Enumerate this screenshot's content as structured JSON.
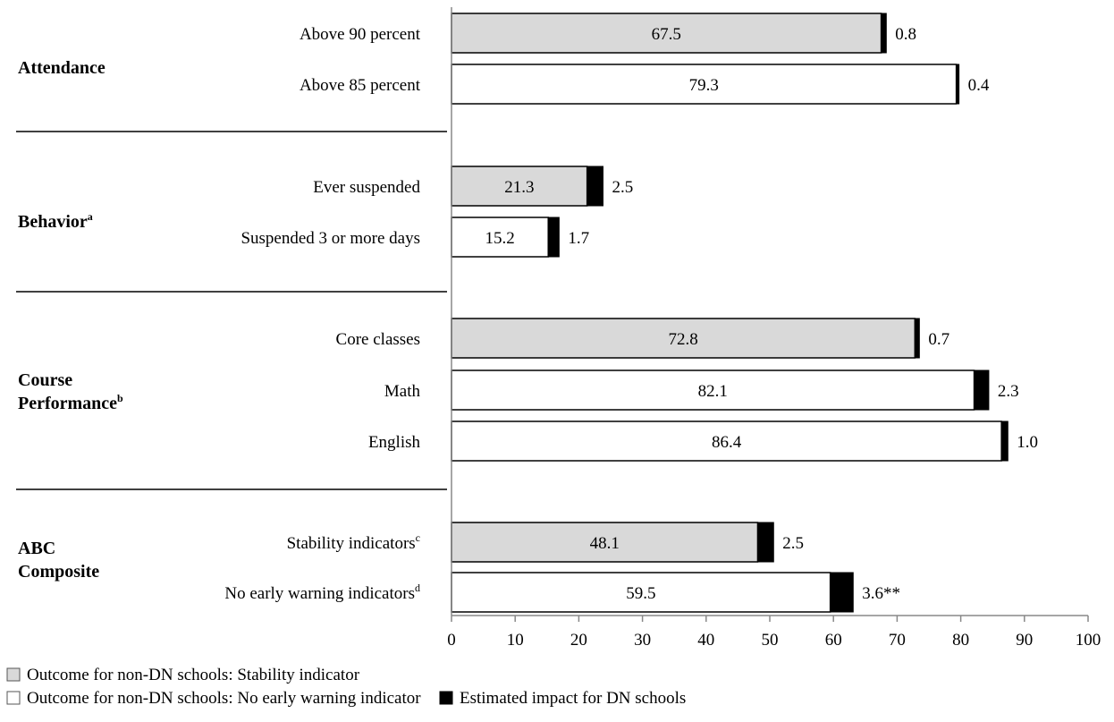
{
  "chart_data": {
    "type": "bar",
    "orientation": "horizontal",
    "stacked": true,
    "xlim": [
      0,
      100
    ],
    "xticks": [
      0,
      10,
      20,
      30,
      40,
      50,
      60,
      70,
      80,
      90,
      100
    ],
    "groups": [
      {
        "label": "Attendance",
        "sup": "",
        "items": [
          0,
          1
        ]
      },
      {
        "label": "Behavior",
        "sup": "a",
        "items": [
          2,
          3
        ]
      },
      {
        "label": "Course Performance",
        "sup": "b",
        "items": [
          4,
          5,
          6
        ]
      },
      {
        "label": "ABC Composite",
        "sup": "",
        "items": [
          7,
          8
        ]
      }
    ],
    "categories": [
      {
        "label": "Above 90 percent",
        "sup": "",
        "style": "stability",
        "base": 67.5,
        "impact": 0.8,
        "impact_label": "0.8"
      },
      {
        "label": "Above 85 percent",
        "sup": "",
        "style": "noewi",
        "base": 79.3,
        "impact": 0.4,
        "impact_label": "0.4"
      },
      {
        "label": "Ever suspended",
        "sup": "",
        "style": "stability",
        "base": 21.3,
        "impact": 2.5,
        "impact_label": "2.5"
      },
      {
        "label": "Suspended 3 or more days",
        "sup": "",
        "style": "noewi",
        "base": 15.2,
        "impact": 1.7,
        "impact_label": "1.7"
      },
      {
        "label": "Core classes",
        "sup": "",
        "style": "stability",
        "base": 72.8,
        "impact": 0.7,
        "impact_label": "0.7"
      },
      {
        "label": "Math",
        "sup": "",
        "style": "noewi",
        "base": 82.1,
        "impact": 2.3,
        "impact_label": "2.3"
      },
      {
        "label": "English",
        "sup": "",
        "style": "noewi",
        "base": 86.4,
        "impact": 1.0,
        "impact_label": "1.0"
      },
      {
        "label": "Stability indicators",
        "sup": "c",
        "style": "stability",
        "base": 48.1,
        "impact": 2.5,
        "impact_label": "2.5"
      },
      {
        "label": "No early warning indicators",
        "sup": "d",
        "style": "noewi",
        "base": 59.5,
        "impact": 3.6,
        "impact_label": "3.6**"
      }
    ],
    "legend": [
      {
        "key": "stability",
        "label": "Outcome for non-DN schools: Stability indicator",
        "color": "#d9d9d9"
      },
      {
        "key": "noewi",
        "label": "Outcome for non-DN schools: No early warning indicator",
        "color": "#ffffff"
      },
      {
        "key": "impact",
        "label": "Estimated impact for DN schools",
        "color": "#000000"
      }
    ],
    "legend_placement": "bottom-left",
    "grid": false
  }
}
